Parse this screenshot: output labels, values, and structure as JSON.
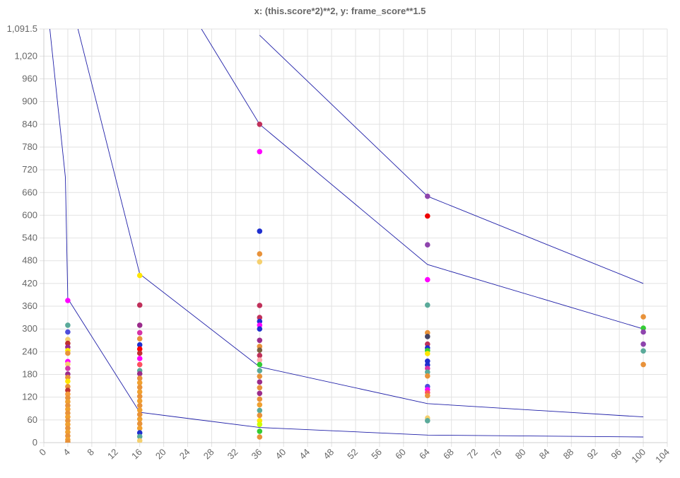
{
  "chart_data": {
    "type": "scatter",
    "title": "x: (this.score*2)**2, y: frame_score**1.5",
    "xlim": [
      0,
      104
    ],
    "ylim": [
      0,
      1091.5
    ],
    "x_ticks": [
      0,
      4,
      8,
      12,
      16,
      20,
      24,
      28,
      32,
      36,
      40,
      44,
      48,
      52,
      56,
      60,
      64,
      68,
      72,
      76,
      80,
      84,
      88,
      92,
      96,
      100,
      104
    ],
    "y_ticks": [
      0,
      60,
      120,
      180,
      240,
      300,
      360,
      420,
      480,
      540,
      600,
      660,
      720,
      780,
      840,
      900,
      960,
      1020,
      1091.5
    ],
    "y_tick_labels": [
      "0",
      "60",
      "120",
      "180",
      "240",
      "300",
      "360",
      "420",
      "480",
      "540",
      "600",
      "660",
      "720",
      "780",
      "840",
      "900",
      "960",
      "1,020",
      "1,091.5"
    ],
    "grid": true,
    "lines": [
      {
        "color": "#1f1fa8",
        "points": [
          [
            1,
            1091.5
          ],
          [
            3.6,
            700
          ],
          [
            4,
            380
          ],
          [
            16,
            80
          ],
          [
            36,
            40
          ],
          [
            64,
            20
          ],
          [
            100,
            15
          ]
        ]
      },
      {
        "color": "#1f1fa8",
        "points": [
          [
            5.7,
            1091.5
          ],
          [
            16,
            445
          ],
          [
            36,
            200
          ],
          [
            64,
            103
          ],
          [
            100,
            68
          ]
        ]
      },
      {
        "color": "#1f1fa8",
        "points": [
          [
            26.3,
            1091.5
          ],
          [
            36,
            840
          ],
          [
            64,
            470
          ],
          [
            100,
            300
          ]
        ]
      },
      {
        "color": "#1f1fa8",
        "points": [
          [
            36,
            1075
          ],
          [
            64,
            650
          ],
          [
            100,
            420
          ]
        ]
      }
    ],
    "points": [
      {
        "x": 4,
        "y": 375,
        "color": "#ff00ff"
      },
      {
        "x": 4,
        "y": 310,
        "color": "#5aaa9a"
      },
      {
        "x": 4,
        "y": 292,
        "color": "#4e4edb"
      },
      {
        "x": 4,
        "y": 272,
        "color": "#f5d06e"
      },
      {
        "x": 4,
        "y": 262,
        "color": "#c0302f"
      },
      {
        "x": 4,
        "y": 252,
        "color": "#9b2c8c"
      },
      {
        "x": 4,
        "y": 243,
        "color": "#ffe600"
      },
      {
        "x": 4,
        "y": 236,
        "color": "#e8923a"
      },
      {
        "x": 4,
        "y": 214,
        "color": "#ff00ff"
      },
      {
        "x": 4,
        "y": 207,
        "color": "#f5d06e"
      },
      {
        "x": 4,
        "y": 196,
        "color": "#d633a8"
      },
      {
        "x": 4,
        "y": 181,
        "color": "#9b2c8c"
      },
      {
        "x": 4,
        "y": 172,
        "color": "#e8923a"
      },
      {
        "x": 4,
        "y": 162,
        "color": "#ffe600"
      },
      {
        "x": 4,
        "y": 148,
        "color": "#e8923a"
      },
      {
        "x": 4,
        "y": 138,
        "color": "#c0302f"
      },
      {
        "x": 4,
        "y": 128,
        "color": "#f39c3c"
      },
      {
        "x": 4,
        "y": 118,
        "color": "#e8923a"
      },
      {
        "x": 4,
        "y": 108,
        "color": "#f0a030"
      },
      {
        "x": 4,
        "y": 98,
        "color": "#e8923a"
      },
      {
        "x": 4,
        "y": 88,
        "color": "#f0a030"
      },
      {
        "x": 4,
        "y": 78,
        "color": "#e8923a"
      },
      {
        "x": 4,
        "y": 68,
        "color": "#f0a030"
      },
      {
        "x": 4,
        "y": 58,
        "color": "#e8923a"
      },
      {
        "x": 4,
        "y": 48,
        "color": "#f0a030"
      },
      {
        "x": 4,
        "y": 38,
        "color": "#e8923a"
      },
      {
        "x": 4,
        "y": 28,
        "color": "#f0a030"
      },
      {
        "x": 4,
        "y": 18,
        "color": "#e8923a"
      },
      {
        "x": 4,
        "y": 8,
        "color": "#f0a030"
      },
      {
        "x": 4,
        "y": 2,
        "color": "#e8923a"
      },
      {
        "x": 16,
        "y": 441,
        "color": "#ffe600"
      },
      {
        "x": 16,
        "y": 363,
        "color": "#c0305a"
      },
      {
        "x": 16,
        "y": 310,
        "color": "#9b2c8c"
      },
      {
        "x": 16,
        "y": 290,
        "color": "#d633a8"
      },
      {
        "x": 16,
        "y": 274,
        "color": "#e8923a"
      },
      {
        "x": 16,
        "y": 258,
        "color": "#1f2fd0"
      },
      {
        "x": 16,
        "y": 247,
        "color": "#ff0000"
      },
      {
        "x": 16,
        "y": 236,
        "color": "#c0302f"
      },
      {
        "x": 16,
        "y": 222,
        "color": "#ff00ff"
      },
      {
        "x": 16,
        "y": 206,
        "color": "#ff5060"
      },
      {
        "x": 16,
        "y": 190,
        "color": "#5aaa9a"
      },
      {
        "x": 16,
        "y": 182,
        "color": "#9b2c8c"
      },
      {
        "x": 16,
        "y": 170,
        "color": "#e8923a"
      },
      {
        "x": 16,
        "y": 158,
        "color": "#f0a030"
      },
      {
        "x": 16,
        "y": 146,
        "color": "#e8923a"
      },
      {
        "x": 16,
        "y": 134,
        "color": "#f0a030"
      },
      {
        "x": 16,
        "y": 122,
        "color": "#e8923a"
      },
      {
        "x": 16,
        "y": 110,
        "color": "#f0a030"
      },
      {
        "x": 16,
        "y": 98,
        "color": "#e8923a"
      },
      {
        "x": 16,
        "y": 86,
        "color": "#f0a030"
      },
      {
        "x": 16,
        "y": 74,
        "color": "#e8923a"
      },
      {
        "x": 16,
        "y": 62,
        "color": "#f0a030"
      },
      {
        "x": 16,
        "y": 50,
        "color": "#e8923a"
      },
      {
        "x": 16,
        "y": 38,
        "color": "#f0a030"
      },
      {
        "x": 16,
        "y": 26,
        "color": "#1f2fd0"
      },
      {
        "x": 16,
        "y": 16,
        "color": "#5aaa9a"
      },
      {
        "x": 16,
        "y": 5,
        "color": "#f5d06e"
      },
      {
        "x": 36,
        "y": 840,
        "color": "#c0305a"
      },
      {
        "x": 36,
        "y": 768,
        "color": "#ff00ff"
      },
      {
        "x": 36,
        "y": 558,
        "color": "#1f2fd0"
      },
      {
        "x": 36,
        "y": 498,
        "color": "#e8923a"
      },
      {
        "x": 36,
        "y": 477,
        "color": "#f5d06e"
      },
      {
        "x": 36,
        "y": 362,
        "color": "#c0305a"
      },
      {
        "x": 36,
        "y": 330,
        "color": "#c0305a"
      },
      {
        "x": 36,
        "y": 320,
        "color": "#1f2fd0"
      },
      {
        "x": 36,
        "y": 310,
        "color": "#ff00ff"
      },
      {
        "x": 36,
        "y": 300,
        "color": "#1f2fd0"
      },
      {
        "x": 36,
        "y": 270,
        "color": "#9b2c8c"
      },
      {
        "x": 36,
        "y": 254,
        "color": "#e8923a"
      },
      {
        "x": 36,
        "y": 244,
        "color": "#7a6040"
      },
      {
        "x": 36,
        "y": 230,
        "color": "#c0305a"
      },
      {
        "x": 36,
        "y": 218,
        "color": "#ffaaaa"
      },
      {
        "x": 36,
        "y": 206,
        "color": "#33cc33"
      },
      {
        "x": 36,
        "y": 190,
        "color": "#5aaa9a"
      },
      {
        "x": 36,
        "y": 175,
        "color": "#e8923a"
      },
      {
        "x": 36,
        "y": 160,
        "color": "#9b2c8c"
      },
      {
        "x": 36,
        "y": 145,
        "color": "#e8923a"
      },
      {
        "x": 36,
        "y": 130,
        "color": "#9b2c8c"
      },
      {
        "x": 36,
        "y": 115,
        "color": "#e8923a"
      },
      {
        "x": 36,
        "y": 100,
        "color": "#f0a030"
      },
      {
        "x": 36,
        "y": 85,
        "color": "#5aaa9a"
      },
      {
        "x": 36,
        "y": 72,
        "color": "#e8923a"
      },
      {
        "x": 36,
        "y": 58,
        "color": "#ffe600"
      },
      {
        "x": 36,
        "y": 48,
        "color": "#ccff00"
      },
      {
        "x": 36,
        "y": 30,
        "color": "#33cc33"
      },
      {
        "x": 36,
        "y": 15,
        "color": "#e8923a"
      },
      {
        "x": 64,
        "y": 650,
        "color": "#8e44ad"
      },
      {
        "x": 64,
        "y": 598,
        "color": "#ee0000"
      },
      {
        "x": 64,
        "y": 522,
        "color": "#8e44ad"
      },
      {
        "x": 64,
        "y": 430,
        "color": "#ff00ff"
      },
      {
        "x": 64,
        "y": 363,
        "color": "#5aaa9a"
      },
      {
        "x": 64,
        "y": 290,
        "color": "#e8923a"
      },
      {
        "x": 64,
        "y": 280,
        "color": "#444466"
      },
      {
        "x": 64,
        "y": 260,
        "color": "#c0305a"
      },
      {
        "x": 64,
        "y": 250,
        "color": "#1f2fd0"
      },
      {
        "x": 64,
        "y": 243,
        "color": "#33cc33"
      },
      {
        "x": 64,
        "y": 235,
        "color": "#ffe600"
      },
      {
        "x": 64,
        "y": 215,
        "color": "#1f2fd0"
      },
      {
        "x": 64,
        "y": 205,
        "color": "#1f2fd0"
      },
      {
        "x": 64,
        "y": 196,
        "color": "#d633a8"
      },
      {
        "x": 64,
        "y": 186,
        "color": "#5aaa9a"
      },
      {
        "x": 64,
        "y": 176,
        "color": "#e8923a"
      },
      {
        "x": 64,
        "y": 148,
        "color": "#4e4edb"
      },
      {
        "x": 64,
        "y": 140,
        "color": "#ff00ff"
      },
      {
        "x": 64,
        "y": 132,
        "color": "#ff5060"
      },
      {
        "x": 64,
        "y": 124,
        "color": "#e8923a"
      },
      {
        "x": 64,
        "y": 65,
        "color": "#f5d06e"
      },
      {
        "x": 64,
        "y": 58,
        "color": "#5aaa9a"
      },
      {
        "x": 100,
        "y": 332,
        "color": "#e8923a"
      },
      {
        "x": 100,
        "y": 302,
        "color": "#33cc33"
      },
      {
        "x": 100,
        "y": 292,
        "color": "#8e44ad"
      },
      {
        "x": 100,
        "y": 260,
        "color": "#8e44ad"
      },
      {
        "x": 100,
        "y": 242,
        "color": "#5aaa9a"
      },
      {
        "x": 100,
        "y": 206,
        "color": "#e8923a"
      }
    ]
  }
}
